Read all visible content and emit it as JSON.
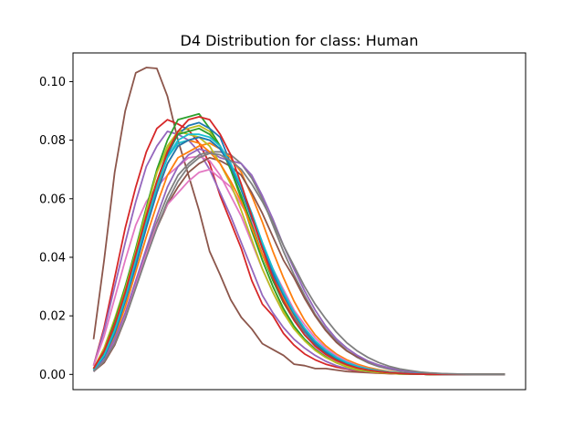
{
  "chart_data": {
    "type": "line",
    "title": "D4 Distribution for class: Human",
    "xlabel": "",
    "ylabel": "",
    "x_ticks_visible": false,
    "x": [
      0,
      1,
      2,
      3,
      4,
      5,
      6,
      7,
      8,
      9,
      10,
      11,
      12,
      13,
      14,
      15,
      16,
      17,
      18,
      19,
      20,
      21,
      22,
      23,
      24,
      25,
      26,
      27,
      28,
      29,
      30,
      31,
      32,
      33,
      34,
      35,
      36,
      37,
      38,
      39
    ],
    "xlim": [
      -1.95,
      40.95
    ],
    "ylim": [
      -0.0052,
      0.1098
    ],
    "yticks": [
      0.0,
      0.02,
      0.04,
      0.06,
      0.08,
      0.1
    ],
    "ytick_labels": [
      "0.00",
      "0.02",
      "0.04",
      "0.06",
      "0.08",
      "0.10"
    ],
    "grid": false,
    "legend": "none",
    "series": [
      {
        "color": "#8c564b",
        "values": [
          0.012,
          0.039,
          0.069,
          0.09,
          0.103,
          0.1048,
          0.1045,
          0.095,
          0.08,
          0.068,
          0.056,
          0.042,
          0.034,
          0.0255,
          0.0195,
          0.0155,
          0.0105,
          0.0085,
          0.0065,
          0.0035,
          0.003,
          0.002,
          0.002,
          0.0015,
          0.001,
          0.0008,
          0.0006,
          0.0004,
          0.0003,
          0.0002,
          0.0001,
          0.0001,
          0.0,
          0.0,
          0.0,
          0.0,
          0.0,
          0.0,
          0.0,
          0.0
        ]
      },
      {
        "color": "#d62728",
        "values": [
          0.003,
          0.016,
          0.033,
          0.05,
          0.064,
          0.076,
          0.084,
          0.087,
          0.0855,
          0.0835,
          0.079,
          0.072,
          0.061,
          0.052,
          0.043,
          0.032,
          0.024,
          0.02,
          0.014,
          0.01,
          0.007,
          0.005,
          0.0035,
          0.0025,
          0.0018,
          0.0012,
          0.0008,
          0.0005,
          0.0003,
          0.0002,
          0.0001,
          0.0001,
          0.0,
          0.0,
          0.0,
          0.0,
          0.0,
          0.0,
          0.0,
          0.0
        ]
      },
      {
        "color": "#9467bd",
        "values": [
          0.003,
          0.015,
          0.03,
          0.045,
          0.059,
          0.071,
          0.078,
          0.083,
          0.082,
          0.08,
          0.076,
          0.07,
          0.062,
          0.054,
          0.045,
          0.036,
          0.027,
          0.021,
          0.016,
          0.012,
          0.009,
          0.0065,
          0.0045,
          0.003,
          0.002,
          0.0014,
          0.0009,
          0.0006,
          0.0004,
          0.0002,
          0.0001,
          0.0001,
          0.0,
          0.0,
          0.0,
          0.0,
          0.0,
          0.0,
          0.0,
          0.0
        ]
      },
      {
        "color": "#e377c2",
        "values": [
          0.003,
          0.013,
          0.026,
          0.039,
          0.051,
          0.059,
          0.064,
          0.068,
          0.071,
          0.074,
          0.0745,
          0.073,
          0.068,
          0.061,
          0.054,
          0.045,
          0.036,
          0.028,
          0.021,
          0.016,
          0.012,
          0.009,
          0.0065,
          0.0045,
          0.003,
          0.002,
          0.0013,
          0.0008,
          0.0005,
          0.0003,
          0.0002,
          0.0001,
          0.0,
          0.0,
          0.0,
          0.0,
          0.0,
          0.0,
          0.0,
          0.0
        ]
      },
      {
        "color": "#bcbd22",
        "values": [
          0.002,
          0.009,
          0.019,
          0.03,
          0.042,
          0.056,
          0.069,
          0.078,
          0.083,
          0.084,
          0.085,
          0.083,
          0.078,
          0.07,
          0.061,
          0.05,
          0.039,
          0.03,
          0.022,
          0.016,
          0.012,
          0.0085,
          0.006,
          0.004,
          0.0025,
          0.0015,
          0.001,
          0.0006,
          0.0004,
          0.0002,
          0.0001,
          0.0001,
          0.0,
          0.0,
          0.0,
          0.0,
          0.0,
          0.0,
          0.0,
          0.0
        ]
      },
      {
        "color": "#2ca02c",
        "values": [
          0.002,
          0.008,
          0.018,
          0.03,
          0.043,
          0.057,
          0.07,
          0.08,
          0.087,
          0.088,
          0.089,
          0.084,
          0.078,
          0.07,
          0.06,
          0.049,
          0.039,
          0.03,
          0.0225,
          0.0165,
          0.012,
          0.0085,
          0.006,
          0.004,
          0.0028,
          0.0018,
          0.0012,
          0.0008,
          0.0005,
          0.0003,
          0.0002,
          0.0001,
          0.0,
          0.0,
          0.0,
          0.0,
          0.0,
          0.0,
          0.0,
          0.0
        ]
      },
      {
        "color": "#1f77b4",
        "values": [
          0.0015,
          0.006,
          0.014,
          0.025,
          0.038,
          0.051,
          0.064,
          0.075,
          0.082,
          0.085,
          0.086,
          0.084,
          0.081,
          0.072,
          0.063,
          0.053,
          0.043,
          0.034,
          0.026,
          0.0195,
          0.0145,
          0.0105,
          0.0075,
          0.0052,
          0.0036,
          0.0024,
          0.0016,
          0.0011,
          0.0007,
          0.0004,
          0.0002,
          0.0001,
          0.0,
          0.0,
          0.0,
          0.0,
          0.0,
          0.0,
          0.0,
          0.0
        ]
      },
      {
        "color": "#17becf",
        "values": [
          0.0015,
          0.007,
          0.016,
          0.027,
          0.04,
          0.053,
          0.065,
          0.074,
          0.079,
          0.08,
          0.081,
          0.08,
          0.077,
          0.072,
          0.064,
          0.055,
          0.045,
          0.036,
          0.028,
          0.021,
          0.0155,
          0.0112,
          0.008,
          0.0056,
          0.0039,
          0.0026,
          0.0017,
          0.0011,
          0.0007,
          0.0004,
          0.0002,
          0.0001,
          0.0,
          0.0,
          0.0,
          0.0,
          0.0,
          0.0,
          0.0,
          0.0
        ]
      },
      {
        "color": "#ff7f0e",
        "values": [
          0.0015,
          0.006,
          0.013,
          0.023,
          0.035,
          0.047,
          0.058,
          0.068,
          0.074,
          0.076,
          0.078,
          0.079,
          0.077,
          0.074,
          0.069,
          0.061,
          0.052,
          0.042,
          0.033,
          0.025,
          0.0185,
          0.0135,
          0.0098,
          0.007,
          0.005,
          0.0035,
          0.0024,
          0.0016,
          0.001,
          0.0006,
          0.0003,
          0.0002,
          0.0001,
          0.0,
          0.0,
          0.0,
          0.0,
          0.0,
          0.0,
          0.0
        ]
      },
      {
        "color": "#7f7f7f",
        "values": [
          0.001,
          0.0045,
          0.011,
          0.02,
          0.031,
          0.042,
          0.052,
          0.061,
          0.068,
          0.072,
          0.075,
          0.076,
          0.076,
          0.075,
          0.072,
          0.067,
          0.06,
          0.051,
          0.042,
          0.034,
          0.027,
          0.0205,
          0.0155,
          0.0115,
          0.0082,
          0.0058,
          0.004,
          0.0027,
          0.0018,
          0.0012,
          0.0008,
          0.0005,
          0.0003,
          0.0002,
          0.0001,
          0.0,
          0.0,
          0.0,
          0.0,
          0.0
        ]
      },
      {
        "color": "#8c564b",
        "values": [
          0.001,
          0.004,
          0.01,
          0.019,
          0.03,
          0.041,
          0.05,
          0.058,
          0.064,
          0.069,
          0.072,
          0.074,
          0.073,
          0.071,
          0.068,
          0.062,
          0.055,
          0.047,
          0.039,
          0.033,
          0.026,
          0.02,
          0.015,
          0.011,
          0.008,
          0.006,
          0.0045,
          0.0032,
          0.0022,
          0.0015,
          0.001,
          0.0006,
          0.0004,
          0.0002,
          0.0001,
          0.0001,
          0.0,
          0.0,
          0.0,
          0.0
        ]
      },
      {
        "color": "#e377c2",
        "values": [
          0.001,
          0.005,
          0.011,
          0.02,
          0.031,
          0.041,
          0.051,
          0.058,
          0.062,
          0.066,
          0.069,
          0.07,
          0.067,
          0.064,
          0.058,
          0.052,
          0.044,
          0.036,
          0.029,
          0.022,
          0.017,
          0.0125,
          0.009,
          0.0065,
          0.0045,
          0.003,
          0.002,
          0.0013,
          0.0008,
          0.0005,
          0.0003,
          0.0002,
          0.0001,
          0.0,
          0.0,
          0.0,
          0.0,
          0.0,
          0.0,
          0.0
        ]
      },
      {
        "color": "#9467bd",
        "values": [
          0.001,
          0.005,
          0.012,
          0.021,
          0.032,
          0.043,
          0.054,
          0.064,
          0.071,
          0.075,
          0.077,
          0.076,
          0.074,
          0.073,
          0.072,
          0.068,
          0.061,
          0.053,
          0.044,
          0.036,
          0.0285,
          0.022,
          0.0165,
          0.0122,
          0.009,
          0.0065,
          0.0046,
          0.0032,
          0.0022,
          0.0015,
          0.001,
          0.0006,
          0.0004,
          0.0002,
          0.0001,
          0.0001,
          0.0,
          0.0,
          0.0,
          0.0
        ]
      },
      {
        "color": "#bcbd22",
        "values": [
          0.002,
          0.008,
          0.017,
          0.029,
          0.042,
          0.056,
          0.069,
          0.077,
          0.083,
          0.082,
          0.081,
          0.078,
          0.072,
          0.065,
          0.056,
          0.046,
          0.036,
          0.028,
          0.021,
          0.0155,
          0.0115,
          0.0082,
          0.0058,
          0.004,
          0.0028,
          0.0019,
          0.0013,
          0.0008,
          0.0005,
          0.0003,
          0.0002,
          0.0001,
          0.0,
          0.0,
          0.0,
          0.0,
          0.0,
          0.0,
          0.0,
          0.0
        ]
      },
      {
        "color": "#2ca02c",
        "values": [
          0.0015,
          0.007,
          0.016,
          0.028,
          0.041,
          0.054,
          0.066,
          0.076,
          0.082,
          0.083,
          0.084,
          0.082,
          0.078,
          0.07,
          0.061,
          0.051,
          0.041,
          0.032,
          0.0245,
          0.0185,
          0.0135,
          0.0098,
          0.007,
          0.0049,
          0.0034,
          0.0023,
          0.0015,
          0.001,
          0.0006,
          0.0004,
          0.0002,
          0.0001,
          0.0,
          0.0,
          0.0,
          0.0,
          0.0,
          0.0,
          0.0,
          0.0
        ]
      },
      {
        "color": "#ff7f0e",
        "values": [
          0.002,
          0.008,
          0.017,
          0.028,
          0.04,
          0.052,
          0.063,
          0.072,
          0.078,
          0.08,
          0.079,
          0.076,
          0.072,
          0.066,
          0.059,
          0.05,
          0.041,
          0.033,
          0.026,
          0.02,
          0.015,
          0.011,
          0.008,
          0.0057,
          0.004,
          0.0028,
          0.0019,
          0.0013,
          0.0008,
          0.0005,
          0.0003,
          0.0002,
          0.0001,
          0.0,
          0.0,
          0.0,
          0.0,
          0.0,
          0.0,
          0.0
        ]
      },
      {
        "color": "#1f77b4",
        "values": [
          0.0015,
          0.006,
          0.014,
          0.025,
          0.037,
          0.05,
          0.062,
          0.072,
          0.078,
          0.08,
          0.081,
          0.08,
          0.077,
          0.071,
          0.063,
          0.054,
          0.044,
          0.035,
          0.027,
          0.0205,
          0.0152,
          0.011,
          0.0079,
          0.0056,
          0.0039,
          0.0027,
          0.0018,
          0.0012,
          0.0008,
          0.0005,
          0.0003,
          0.0002,
          0.0001,
          0.0,
          0.0,
          0.0,
          0.0,
          0.0,
          0.0,
          0.0
        ]
      },
      {
        "color": "#17becf",
        "values": [
          0.0015,
          0.0065,
          0.015,
          0.026,
          0.039,
          0.052,
          0.064,
          0.074,
          0.08,
          0.082,
          0.082,
          0.081,
          0.078,
          0.072,
          0.064,
          0.055,
          0.045,
          0.036,
          0.028,
          0.0212,
          0.0158,
          0.0115,
          0.0083,
          0.0059,
          0.0041,
          0.0028,
          0.0019,
          0.0013,
          0.0008,
          0.0005,
          0.0003,
          0.0002,
          0.0001,
          0.0,
          0.0,
          0.0,
          0.0,
          0.0,
          0.0,
          0.0
        ]
      },
      {
        "color": "#d62728",
        "values": [
          0.002,
          0.008,
          0.017,
          0.028,
          0.041,
          0.054,
          0.066,
          0.076,
          0.083,
          0.087,
          0.088,
          0.087,
          0.082,
          0.075,
          0.065,
          0.054,
          0.043,
          0.033,
          0.025,
          0.0185,
          0.0135,
          0.0097,
          0.0069,
          0.0048,
          0.0033,
          0.0022,
          0.0015,
          0.001,
          0.0006,
          0.0004,
          0.0002,
          0.0001,
          0.0,
          0.0,
          0.0,
          0.0,
          0.0,
          0.0,
          0.0,
          0.0
        ]
      },
      {
        "color": "#7f7f7f",
        "values": [
          0.001,
          0.0045,
          0.0105,
          0.019,
          0.0295,
          0.04,
          0.05,
          0.059,
          0.066,
          0.071,
          0.074,
          0.0755,
          0.075,
          0.073,
          0.07,
          0.065,
          0.059,
          0.052,
          0.044,
          0.037,
          0.03,
          0.024,
          0.019,
          0.0145,
          0.0108,
          0.008,
          0.0058,
          0.0041,
          0.0028,
          0.0019,
          0.0013,
          0.0008,
          0.0005,
          0.0003,
          0.0002,
          0.0001,
          0.0,
          0.0,
          0.0,
          0.0
        ]
      }
    ]
  }
}
